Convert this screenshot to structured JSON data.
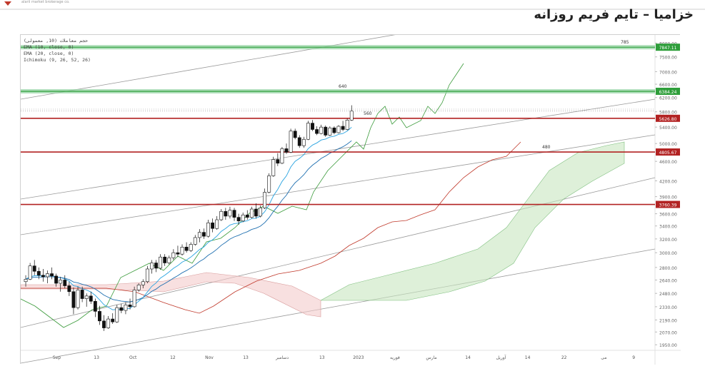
{
  "page": {
    "title": "خزامیا – تایم فریم روزانه",
    "logo_text": "alarii market brokerage co."
  },
  "chart_data": {
    "type": "candlestick",
    "indicators_legend": [
      "حجم معاملات (10, معمولی)",
      "EMA (10, close, 0)",
      "EMA (20, close, 0)",
      "Ichimoku (9, 26, 52, 26)"
    ],
    "x_tick_labels": [
      "Sep",
      "13",
      "Oct",
      "12",
      "Nov",
      "13",
      "دسامبر",
      "13",
      "2023",
      "فوریه",
      "مارس",
      "14",
      "آوریل",
      "14",
      "22",
      "می",
      "9"
    ],
    "y_scale": "log",
    "y_tick_labels": [
      8000,
      7500,
      7000,
      6600,
      6200,
      5800,
      5400,
      5000,
      4600,
      4200,
      3900,
      3600,
      3400,
      3200,
      3000,
      2800,
      2640,
      2480,
      2330,
      2190,
      2070,
      1950
    ],
    "ylim": [
      1900,
      8200
    ],
    "levels": [
      {
        "label": "785",
        "price_tag": "7847.11",
        "type": "resistance-zone",
        "color": "#2e9e3a"
      },
      {
        "label": "640",
        "price_tag": "6384.24",
        "type": "resistance-zone",
        "color": "#2e9e3a"
      },
      {
        "label": "560",
        "price_tag": "5626.80",
        "type": "support-resistance",
        "color": "#b22222"
      },
      {
        "label": "480",
        "price_tag": "4805.67",
        "type": "support-resistance",
        "color": "#b22222"
      },
      {
        "label": "",
        "price_tag": "3760.39",
        "type": "support-resistance",
        "color": "#b22222"
      }
    ],
    "candles": [
      {
        "o": 2620,
        "h": 2700,
        "l": 2560,
        "c": 2650
      },
      {
        "o": 2650,
        "h": 2860,
        "l": 2640,
        "c": 2820
      },
      {
        "o": 2820,
        "h": 2900,
        "l": 2700,
        "c": 2750
      },
      {
        "o": 2750,
        "h": 2800,
        "l": 2650,
        "c": 2700
      },
      {
        "o": 2700,
        "h": 2780,
        "l": 2620,
        "c": 2680
      },
      {
        "o": 2680,
        "h": 2760,
        "l": 2600,
        "c": 2720
      },
      {
        "o": 2720,
        "h": 2800,
        "l": 2650,
        "c": 2690
      },
      {
        "o": 2690,
        "h": 2720,
        "l": 2560,
        "c": 2600
      },
      {
        "o": 2600,
        "h": 2680,
        "l": 2500,
        "c": 2640
      },
      {
        "o": 2640,
        "h": 2700,
        "l": 2540,
        "c": 2570
      },
      {
        "o": 2570,
        "h": 2620,
        "l": 2450,
        "c": 2500
      },
      {
        "o": 2500,
        "h": 2550,
        "l": 2250,
        "c": 2320
      },
      {
        "o": 2320,
        "h": 2560,
        "l": 2300,
        "c": 2520
      },
      {
        "o": 2520,
        "h": 2560,
        "l": 2380,
        "c": 2420
      },
      {
        "o": 2420,
        "h": 2480,
        "l": 2330,
        "c": 2450
      },
      {
        "o": 2450,
        "h": 2500,
        "l": 2360,
        "c": 2390
      },
      {
        "o": 2390,
        "h": 2420,
        "l": 2220,
        "c": 2280
      },
      {
        "o": 2280,
        "h": 2340,
        "l": 2140,
        "c": 2180
      },
      {
        "o": 2180,
        "h": 2240,
        "l": 2080,
        "c": 2110
      },
      {
        "o": 2110,
        "h": 2230,
        "l": 2100,
        "c": 2200
      },
      {
        "o": 2200,
        "h": 2260,
        "l": 2150,
        "c": 2170
      },
      {
        "o": 2170,
        "h": 2350,
        "l": 2160,
        "c": 2320
      },
      {
        "o": 2320,
        "h": 2360,
        "l": 2260,
        "c": 2290
      },
      {
        "o": 2290,
        "h": 2380,
        "l": 2250,
        "c": 2350
      },
      {
        "o": 2350,
        "h": 2420,
        "l": 2300,
        "c": 2330
      },
      {
        "o": 2330,
        "h": 2560,
        "l": 2320,
        "c": 2520
      },
      {
        "o": 2520,
        "h": 2600,
        "l": 2500,
        "c": 2580
      },
      {
        "o": 2580,
        "h": 2650,
        "l": 2540,
        "c": 2620
      },
      {
        "o": 2620,
        "h": 2820,
        "l": 2600,
        "c": 2780
      },
      {
        "o": 2780,
        "h": 2900,
        "l": 2720,
        "c": 2860
      },
      {
        "o": 2860,
        "h": 2900,
        "l": 2740,
        "c": 2790
      },
      {
        "o": 2790,
        "h": 2980,
        "l": 2770,
        "c": 2940
      },
      {
        "o": 2940,
        "h": 2980,
        "l": 2820,
        "c": 2860
      },
      {
        "o": 2860,
        "h": 2960,
        "l": 2840,
        "c": 2930
      },
      {
        "o": 2930,
        "h": 3050,
        "l": 2900,
        "c": 3000
      },
      {
        "o": 3000,
        "h": 3100,
        "l": 2940,
        "c": 2980
      },
      {
        "o": 2980,
        "h": 3120,
        "l": 2960,
        "c": 3080
      },
      {
        "o": 3080,
        "h": 3150,
        "l": 3000,
        "c": 3030
      },
      {
        "o": 3030,
        "h": 3150,
        "l": 3010,
        "c": 3120
      },
      {
        "o": 3120,
        "h": 3260,
        "l": 3100,
        "c": 3220
      },
      {
        "o": 3220,
        "h": 3350,
        "l": 3150,
        "c": 3300
      },
      {
        "o": 3300,
        "h": 3360,
        "l": 3200,
        "c": 3240
      },
      {
        "o": 3240,
        "h": 3500,
        "l": 3220,
        "c": 3450
      },
      {
        "o": 3450,
        "h": 3520,
        "l": 3300,
        "c": 3360
      },
      {
        "o": 3360,
        "h": 3560,
        "l": 3340,
        "c": 3500
      },
      {
        "o": 3500,
        "h": 3680,
        "l": 3480,
        "c": 3640
      },
      {
        "o": 3640,
        "h": 3700,
        "l": 3500,
        "c": 3560
      },
      {
        "o": 3560,
        "h": 3720,
        "l": 3520,
        "c": 3660
      },
      {
        "o": 3660,
        "h": 3700,
        "l": 3480,
        "c": 3540
      },
      {
        "o": 3540,
        "h": 3600,
        "l": 3420,
        "c": 3480
      },
      {
        "o": 3480,
        "h": 3620,
        "l": 3460,
        "c": 3580
      },
      {
        "o": 3580,
        "h": 3660,
        "l": 3500,
        "c": 3540
      },
      {
        "o": 3540,
        "h": 3720,
        "l": 3520,
        "c": 3680
      },
      {
        "o": 3680,
        "h": 3780,
        "l": 3520,
        "c": 3560
      },
      {
        "o": 3560,
        "h": 3740,
        "l": 3540,
        "c": 3700
      },
      {
        "o": 3700,
        "h": 4050,
        "l": 3680,
        "c": 3980
      },
      {
        "o": 3980,
        "h": 4350,
        "l": 3960,
        "c": 4300
      },
      {
        "o": 4300,
        "h": 4700,
        "l": 4280,
        "c": 4640
      },
      {
        "o": 4640,
        "h": 4780,
        "l": 4500,
        "c": 4560
      },
      {
        "o": 4560,
        "h": 4920,
        "l": 4540,
        "c": 4880
      },
      {
        "o": 4880,
        "h": 5000,
        "l": 4760,
        "c": 4800
      },
      {
        "o": 4800,
        "h": 5360,
        "l": 4780,
        "c": 5300
      },
      {
        "o": 5300,
        "h": 5360,
        "l": 5100,
        "c": 5140
      },
      {
        "o": 5140,
        "h": 5200,
        "l": 4900,
        "c": 4950
      },
      {
        "o": 4950,
        "h": 5160,
        "l": 4900,
        "c": 5100
      },
      {
        "o": 5100,
        "h": 5560,
        "l": 5080,
        "c": 5500
      },
      {
        "o": 5500,
        "h": 5580,
        "l": 5300,
        "c": 5340
      },
      {
        "o": 5340,
        "h": 5420,
        "l": 5200,
        "c": 5240
      },
      {
        "o": 5240,
        "h": 5460,
        "l": 5220,
        "c": 5400
      },
      {
        "o": 5400,
        "h": 5440,
        "l": 5160,
        "c": 5200
      },
      {
        "o": 5200,
        "h": 5420,
        "l": 5180,
        "c": 5380
      },
      {
        "o": 5380,
        "h": 5420,
        "l": 5220,
        "c": 5260
      },
      {
        "o": 5260,
        "h": 5450,
        "l": 5240,
        "c": 5420
      },
      {
        "o": 5420,
        "h": 5560,
        "l": 5300,
        "c": 5340
      },
      {
        "o": 5340,
        "h": 5620,
        "l": 5320,
        "c": 5580
      },
      {
        "o": 5580,
        "h": 5980,
        "l": 5560,
        "c": 5820
      }
    ],
    "price_line": 5820
  }
}
